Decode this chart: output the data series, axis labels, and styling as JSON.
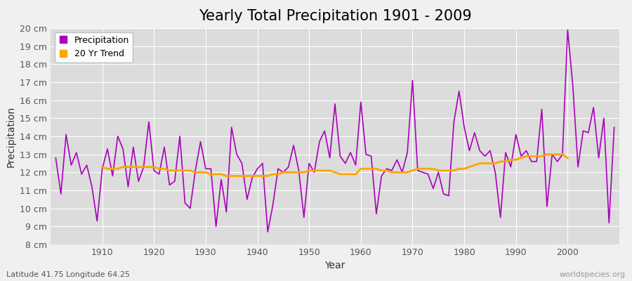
{
  "title": "Yearly Total Precipitation 1901 - 2009",
  "xlabel": "Year",
  "ylabel": "Precipitation",
  "subtitle": "Latitude 41.75 Longitude 64.25",
  "watermark": "worldspecies.org",
  "years": [
    1901,
    1902,
    1903,
    1904,
    1905,
    1906,
    1907,
    1908,
    1909,
    1910,
    1911,
    1912,
    1913,
    1914,
    1915,
    1916,
    1917,
    1918,
    1919,
    1920,
    1921,
    1922,
    1923,
    1924,
    1925,
    1926,
    1927,
    1928,
    1929,
    1930,
    1931,
    1932,
    1933,
    1934,
    1935,
    1936,
    1937,
    1938,
    1939,
    1940,
    1941,
    1942,
    1943,
    1944,
    1945,
    1946,
    1947,
    1948,
    1949,
    1950,
    1951,
    1952,
    1953,
    1954,
    1955,
    1956,
    1957,
    1958,
    1959,
    1960,
    1961,
    1962,
    1963,
    1964,
    1965,
    1966,
    1967,
    1968,
    1969,
    1970,
    1971,
    1972,
    1973,
    1974,
    1975,
    1976,
    1977,
    1978,
    1979,
    1980,
    1981,
    1982,
    1983,
    1984,
    1985,
    1986,
    1987,
    1988,
    1989,
    1990,
    1991,
    1992,
    1993,
    1994,
    1995,
    1996,
    1997,
    1998,
    1999,
    2000,
    2001,
    2002,
    2003,
    2004,
    2005,
    2006,
    2007,
    2008,
    2009
  ],
  "precipitation": [
    12.8,
    10.8,
    14.1,
    12.4,
    13.1,
    11.9,
    12.4,
    11.2,
    9.3,
    12.2,
    13.3,
    11.8,
    14.0,
    13.3,
    11.2,
    13.4,
    11.5,
    12.3,
    14.8,
    12.1,
    11.9,
    13.4,
    11.3,
    11.5,
    14.0,
    10.3,
    10.0,
    12.1,
    13.7,
    12.2,
    12.2,
    9.0,
    11.6,
    9.8,
    14.5,
    13.0,
    12.5,
    10.5,
    11.7,
    12.2,
    12.5,
    8.7,
    10.2,
    12.2,
    12.0,
    12.3,
    13.5,
    12.1,
    9.5,
    12.5,
    12.0,
    13.7,
    14.3,
    12.8,
    15.8,
    12.9,
    12.5,
    13.1,
    12.4,
    15.9,
    13.0,
    12.9,
    9.7,
    11.8,
    12.2,
    12.1,
    12.7,
    12.0,
    13.1,
    17.1,
    12.1,
    12.0,
    11.9,
    11.1,
    12.0,
    10.8,
    10.7,
    14.8,
    16.5,
    14.5,
    13.2,
    14.2,
    13.2,
    12.9,
    13.2,
    12.0,
    9.5,
    13.1,
    12.3,
    14.1,
    12.9,
    13.2,
    12.6,
    12.6,
    15.5,
    10.1,
    13.0,
    12.6,
    13.0,
    19.9,
    16.8,
    12.3,
    14.3,
    14.2,
    15.6,
    12.8,
    15.0,
    9.2,
    14.5
  ],
  "trend_years": [
    1910,
    1911,
    1912,
    1913,
    1914,
    1915,
    1916,
    1917,
    1918,
    1919,
    1920,
    1921,
    1922,
    1923,
    1924,
    1925,
    1926,
    1927,
    1928,
    1929,
    1930,
    1931,
    1932,
    1933,
    1934,
    1935,
    1936,
    1937,
    1938,
    1939,
    1940,
    1941,
    1942,
    1943,
    1944,
    1945,
    1946,
    1947,
    1948,
    1949,
    1950,
    1951,
    1952,
    1953,
    1954,
    1955,
    1956,
    1957,
    1958,
    1959,
    1960,
    1961,
    1962,
    1963,
    1964,
    1965,
    1966,
    1967,
    1968,
    1969,
    1970,
    1971,
    1972,
    1973,
    1974,
    1975,
    1976,
    1977,
    1978,
    1979,
    1980,
    1981,
    1982,
    1983,
    1984,
    1985,
    1986,
    1987,
    1988,
    1989,
    1990,
    1991,
    1992,
    1993,
    1994,
    1995,
    1996,
    1997,
    1998,
    1999,
    2000
  ],
  "trend_values": [
    12.3,
    12.2,
    12.2,
    12.2,
    12.3,
    12.3,
    12.3,
    12.3,
    12.3,
    12.3,
    12.3,
    12.2,
    12.2,
    12.1,
    12.1,
    12.1,
    12.1,
    12.1,
    12.0,
    12.0,
    12.0,
    11.9,
    11.9,
    11.9,
    11.8,
    11.8,
    11.8,
    11.8,
    11.8,
    11.8,
    11.8,
    11.8,
    11.8,
    11.9,
    11.9,
    12.0,
    12.0,
    12.0,
    12.0,
    12.0,
    12.1,
    12.1,
    12.1,
    12.1,
    12.1,
    12.0,
    11.9,
    11.9,
    11.9,
    11.9,
    12.2,
    12.2,
    12.2,
    12.2,
    12.1,
    12.1,
    12.0,
    12.0,
    12.0,
    12.0,
    12.1,
    12.2,
    12.2,
    12.2,
    12.2,
    12.1,
    12.1,
    12.1,
    12.1,
    12.2,
    12.2,
    12.3,
    12.4,
    12.5,
    12.5,
    12.5,
    12.5,
    12.6,
    12.6,
    12.7,
    12.7,
    12.8,
    12.9,
    12.9,
    12.9,
    12.9,
    13.0,
    13.0,
    13.0,
    13.0,
    12.8
  ],
  "ylim": [
    8,
    20
  ],
  "yticks": [
    8,
    9,
    10,
    11,
    12,
    13,
    14,
    15,
    16,
    17,
    18,
    19,
    20
  ],
  "xlim": [
    1900,
    2010
  ],
  "xticks": [
    1910,
    1920,
    1930,
    1940,
    1950,
    1960,
    1970,
    1980,
    1990,
    2000
  ],
  "precip_color": "#AA00BB",
  "trend_color": "#FFA500",
  "fig_bg_color": "#F0F0F0",
  "plot_bg_color": "#DCDCDC",
  "grid_color": "#FFFFFF",
  "title_fontsize": 15,
  "axis_label_fontsize": 10,
  "tick_fontsize": 9,
  "legend_fontsize": 9
}
